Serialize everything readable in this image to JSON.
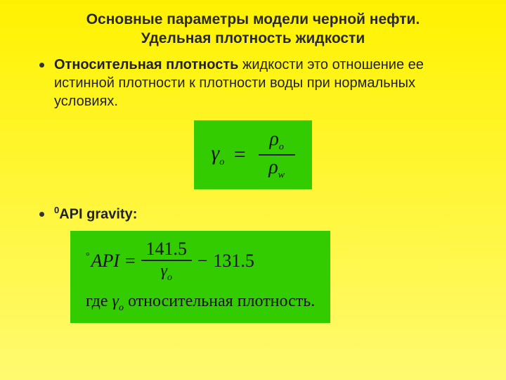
{
  "title_line1": "Основные параметры модели черной нефти.",
  "title_line2": "Удельная плотность жидкости",
  "bullet1": {
    "bold": "Относительная плотность",
    "rest": " жидкости это отношение ее истинной плотности к плотности воды при нормальных условиях."
  },
  "formula1": {
    "lhs_sym": "γ",
    "lhs_sub": "o",
    "eq": "=",
    "num_sym": "ρ",
    "num_sub": "o",
    "den_sym": "ρ",
    "den_sub": "w",
    "box_bg": "#33cc00"
  },
  "bullet2": {
    "sup": "0",
    "text": "API gravity:"
  },
  "formula2": {
    "deg": "°",
    "api": "API",
    "eq": "=",
    "num": "141.5",
    "den_sym": "γ",
    "den_sub": "o",
    "minus": "−",
    "tail": "131.5",
    "line2_pre": "где ",
    "line2_sym": "γ",
    "line2_sub": "o",
    "line2_post": " относительная плотность.",
    "box_bg": "#33cc00"
  },
  "colors": {
    "bg_top": "#fff200",
    "bg_bottom": "#fffa70",
    "text": "#222222"
  }
}
